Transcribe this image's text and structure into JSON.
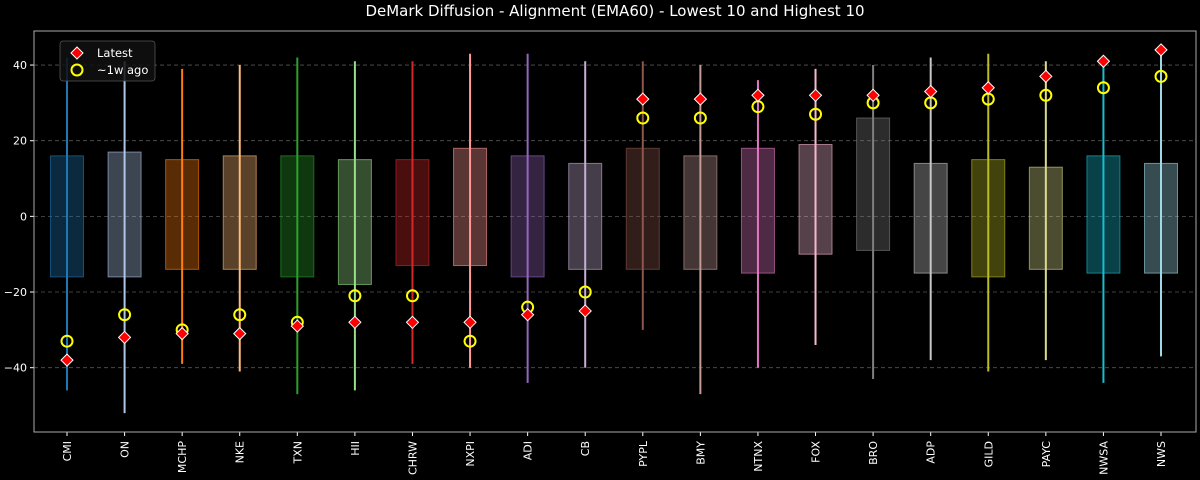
{
  "chart_data": {
    "type": "box-range",
    "title": "DeMark Diffusion - Alignment (EMA60) - Lowest 10 and Highest 10",
    "xlabel": "",
    "ylabel": "",
    "ylim": [
      -57,
      49
    ],
    "yticks": [
      -40,
      -20,
      0,
      20,
      40
    ],
    "grid": "horizontal dashed",
    "legend": {
      "position": "top-left",
      "entries": [
        {
          "label": "Latest",
          "marker": "red-diamond",
          "color": "#ff0000"
        },
        {
          "label": "~1w ago",
          "marker": "yellow-circle",
          "color": "#ffff00"
        }
      ]
    },
    "categories": [
      "CMI",
      "ON",
      "MCHP",
      "NKE",
      "TXN",
      "HII",
      "CHRW",
      "NXPI",
      "ADI",
      "CB",
      "PYPL",
      "BMY",
      "NTNX",
      "FOX",
      "BRO",
      "ADP",
      "GILD",
      "PAYC",
      "NWSA",
      "NWS"
    ],
    "colors": [
      "#1f77b4",
      "#aec7e8",
      "#ff7f0e",
      "#ffbb78",
      "#2ca02c",
      "#98df8a",
      "#d62728",
      "#ff9896",
      "#9467bd",
      "#c5b0d5",
      "#8c564b",
      "#c49c94",
      "#e377c2",
      "#f7b6d2",
      "#7f7f7f",
      "#c7c7c7",
      "#bcbd22",
      "#dbdb8d",
      "#17becf",
      "#9edae5"
    ],
    "whisker_low": [
      -46,
      -52,
      -39,
      -41,
      -47,
      -46,
      -39,
      -40,
      -44,
      -40,
      -30,
      -47,
      -40,
      -34,
      -43,
      -38,
      -41,
      -38,
      -44,
      -37
    ],
    "whisker_high": [
      42,
      41,
      39,
      40,
      42,
      41,
      41,
      43,
      43,
      41,
      41,
      40,
      36,
      39,
      40,
      42,
      43,
      41,
      41,
      45
    ],
    "box_low": [
      -16,
      -16,
      -14,
      -14,
      -16,
      -18,
      -13,
      -13,
      -16,
      -14,
      -14,
      -14,
      -15,
      -10,
      -9,
      -15,
      -16,
      -14,
      -15,
      -15
    ],
    "box_high": [
      16,
      17,
      15,
      16,
      16,
      15,
      15,
      18,
      16,
      14,
      18,
      16,
      18,
      19,
      26,
      14,
      15,
      13,
      16,
      14
    ],
    "series": [
      {
        "name": "Latest",
        "values": [
          -38,
          -32,
          -31,
          -31,
          -29,
          -28,
          -28,
          -28,
          -26,
          -25,
          31,
          31,
          32,
          32,
          32,
          33,
          34,
          37,
          41,
          44
        ]
      },
      {
        "name": "~1w ago",
        "values": [
          -33,
          -26,
          -30,
          -26,
          -28,
          -21,
          -21,
          -33,
          -24,
          -20,
          26,
          26,
          29,
          27,
          30,
          30,
          31,
          32,
          34,
          37
        ]
      }
    ]
  }
}
